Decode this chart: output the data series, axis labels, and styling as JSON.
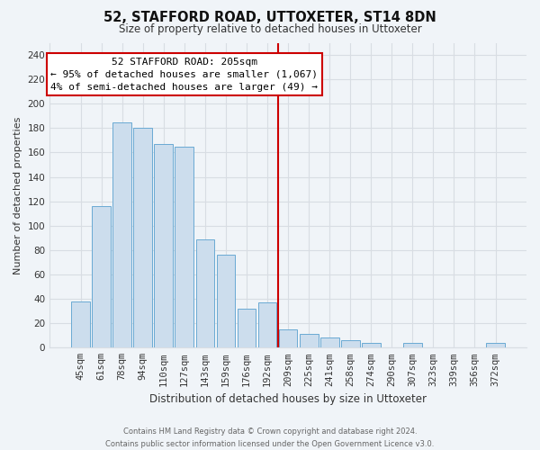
{
  "title": "52, STAFFORD ROAD, UTTOXETER, ST14 8DN",
  "subtitle": "Size of property relative to detached houses in Uttoxeter",
  "xlabel": "Distribution of detached houses by size in Uttoxeter",
  "ylabel": "Number of detached properties",
  "bar_labels": [
    "45sqm",
    "61sqm",
    "78sqm",
    "94sqm",
    "110sqm",
    "127sqm",
    "143sqm",
    "159sqm",
    "176sqm",
    "192sqm",
    "209sqm",
    "225sqm",
    "241sqm",
    "258sqm",
    "274sqm",
    "290sqm",
    "307sqm",
    "323sqm",
    "339sqm",
    "356sqm",
    "372sqm"
  ],
  "bar_values": [
    38,
    116,
    185,
    180,
    167,
    165,
    89,
    76,
    32,
    37,
    15,
    11,
    8,
    6,
    4,
    0,
    4,
    0,
    0,
    0,
    4
  ],
  "bar_color": "#ccdded",
  "bar_edge_color": "#6aaad4",
  "vline_color": "#cc0000",
  "annotation_title": "52 STAFFORD ROAD: 205sqm",
  "annotation_line1": "← 95% of detached houses are smaller (1,067)",
  "annotation_line2": "4% of semi-detached houses are larger (49) →",
  "annotation_box_edge": "#cc0000",
  "ylim": [
    0,
    250
  ],
  "yticks": [
    0,
    20,
    40,
    60,
    80,
    100,
    120,
    140,
    160,
    180,
    200,
    220,
    240
  ],
  "footer_line1": "Contains HM Land Registry data © Crown copyright and database right 2024.",
  "footer_line2": "Contains public sector information licensed under the Open Government Licence v3.0.",
  "bg_color": "#f0f4f8",
  "grid_color": "#d8dde3",
  "title_fontsize": 10.5,
  "subtitle_fontsize": 8.5,
  "ylabel_fontsize": 8,
  "xlabel_fontsize": 8.5,
  "tick_fontsize": 7.5,
  "footer_fontsize": 6,
  "vline_index": 10
}
